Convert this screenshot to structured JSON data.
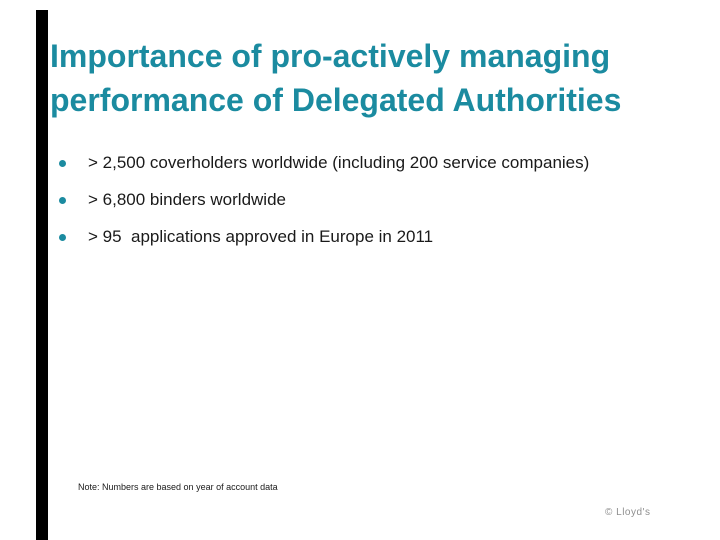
{
  "slide": {
    "title": "Importance of pro-actively managing performance of Delegated Authorities",
    "bullets": [
      "> 2,500 coverholders worldwide (including 200 service companies)",
      "> 6,800 binders worldwide",
      "> 95  applications approved in Europe in 2011"
    ],
    "note": "Note: Numbers are based on year of account data",
    "copyright": "© Lloyd's",
    "colors": {
      "accent_teal": "#1b8ba0",
      "body_text": "#1a1a1a",
      "sidebar_black": "#000000",
      "copyright_gray": "#8f8f8f",
      "background": "#ffffff"
    }
  }
}
